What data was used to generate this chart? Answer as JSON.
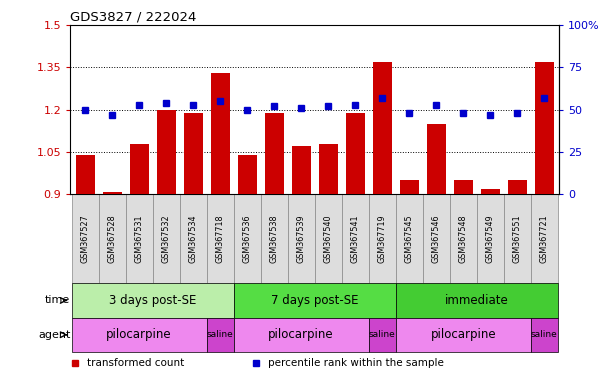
{
  "title": "GDS3827 / 222024",
  "samples": [
    "GSM367527",
    "GSM367528",
    "GSM367531",
    "GSM367532",
    "GSM367534",
    "GSM367718",
    "GSM367536",
    "GSM367538",
    "GSM367539",
    "GSM367540",
    "GSM367541",
    "GSM367719",
    "GSM367545",
    "GSM367546",
    "GSM367548",
    "GSM367549",
    "GSM367551",
    "GSM367721"
  ],
  "transformed_count": [
    1.04,
    0.91,
    1.08,
    1.2,
    1.19,
    1.33,
    1.04,
    1.19,
    1.07,
    1.08,
    1.19,
    1.37,
    0.95,
    1.15,
    0.95,
    0.92,
    0.95,
    1.37
  ],
  "percentile_rank": [
    50,
    47,
    53,
    54,
    53,
    55,
    50,
    52,
    51,
    52,
    53,
    57,
    48,
    53,
    48,
    47,
    48,
    57
  ],
  "ylim_left": [
    0.9,
    1.5
  ],
  "ylim_right": [
    0,
    100
  ],
  "yticks_left": [
    0.9,
    1.05,
    1.2,
    1.35,
    1.5
  ],
  "yticks_right": [
    0,
    25,
    50,
    75,
    100
  ],
  "ytick_labels_right": [
    "0",
    "25",
    "50",
    "75",
    "100%"
  ],
  "bar_color": "#cc0000",
  "dot_color": "#0000cc",
  "bg_color": "#ffffff",
  "dotted_lines": [
    1.05,
    1.2,
    1.35
  ],
  "group_separators": [
    5.5,
    11.5
  ],
  "time_groups": [
    {
      "label": "3 days post-SE",
      "start": 0,
      "end": 6,
      "color": "#bbeeaa"
    },
    {
      "label": "7 days post-SE",
      "start": 6,
      "end": 12,
      "color": "#55dd44"
    },
    {
      "label": "immediate",
      "start": 12,
      "end": 18,
      "color": "#44cc33"
    }
  ],
  "agent_groups": [
    {
      "label": "pilocarpine",
      "start": 0,
      "end": 5,
      "color": "#ee88ee"
    },
    {
      "label": "saline",
      "start": 5,
      "end": 6,
      "color": "#cc44cc"
    },
    {
      "label": "pilocarpine",
      "start": 6,
      "end": 11,
      "color": "#ee88ee"
    },
    {
      "label": "saline",
      "start": 11,
      "end": 12,
      "color": "#cc44cc"
    },
    {
      "label": "pilocarpine",
      "start": 12,
      "end": 17,
      "color": "#ee88ee"
    },
    {
      "label": "saline",
      "start": 17,
      "end": 18,
      "color": "#cc44cc"
    }
  ],
  "legend_items": [
    {
      "label": "transformed count",
      "color": "#cc0000"
    },
    {
      "label": "percentile rank within the sample",
      "color": "#0000cc"
    }
  ],
  "sample_bg_color": "#dddddd",
  "sample_border_color": "#888888"
}
